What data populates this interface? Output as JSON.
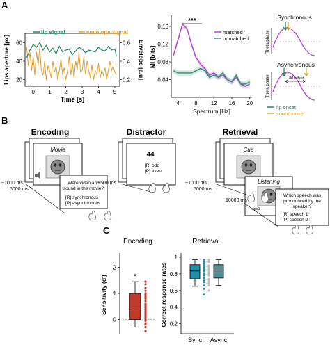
{
  "panels": {
    "a": "A",
    "b": "B",
    "c": "C"
  },
  "panel_a": {
    "left_chart": {
      "type": "line",
      "legend": [
        "lip signal",
        "envelope signal"
      ],
      "colors": {
        "lip": "#1f8a5a",
        "envelope": "#e0a030"
      },
      "xlabel": "Time [s]",
      "ylabel_left": "Lips aperture [px]",
      "ylabel_right": "Envelope [a.u]",
      "xticks": [
        "0",
        "1",
        "2",
        "3",
        "4",
        "5"
      ],
      "yticks_left": [
        "20",
        "40",
        "60"
      ],
      "yticks_right": [
        "0.2",
        "0.4",
        "0.6"
      ],
      "xlim": [
        -0.5,
        5.3
      ],
      "ylim_left": [
        13,
        70
      ],
      "ylim_right": [
        0.13,
        0.7
      ],
      "lip_t": [
        -0.4,
        -0.2,
        0,
        0.2,
        0.4,
        0.6,
        0.8,
        1,
        1.2,
        1.4,
        1.6,
        1.8,
        2,
        2.2,
        2.4,
        2.6,
        2.8,
        3,
        3.2,
        3.4,
        3.6,
        3.8,
        4,
        4.2,
        4.4,
        4.6,
        4.8,
        5,
        5.1
      ],
      "lip_y": [
        44,
        52,
        58,
        55,
        60,
        52,
        57,
        50,
        54,
        48,
        56,
        50,
        52,
        53,
        47,
        51,
        55,
        53,
        49,
        52,
        51,
        50,
        55,
        52,
        51,
        56,
        52,
        53,
        45
      ],
      "env_t": [
        -0.4,
        -0.3,
        -0.2,
        -0.1,
        0,
        0.1,
        0.2,
        0.3,
        0.4,
        0.5,
        0.6,
        0.7,
        0.8,
        0.9,
        1,
        1.1,
        1.2,
        1.3,
        1.4,
        1.5,
        1.6,
        1.7,
        1.8,
        1.9,
        2,
        2.1,
        2.2,
        2.3,
        2.4,
        2.5,
        2.6,
        2.7,
        2.8,
        2.9,
        3,
        3.1,
        3.2,
        3.3,
        3.4,
        3.5,
        3.6,
        3.7,
        3.8,
        3.9,
        4,
        4.1,
        4.2,
        4.3,
        4.4,
        4.5,
        4.6,
        4.7,
        4.8,
        4.9,
        5,
        5.1
      ],
      "env_y": [
        0.55,
        0.35,
        0.5,
        0.3,
        0.45,
        0.25,
        0.5,
        0.35,
        0.55,
        0.3,
        0.25,
        0.4,
        0.2,
        0.35,
        0.3,
        0.22,
        0.4,
        0.28,
        0.35,
        0.2,
        0.3,
        0.42,
        0.25,
        0.33,
        0.2,
        0.3,
        0.45,
        0.25,
        0.38,
        0.22,
        0.4,
        0.3,
        0.5,
        0.28,
        0.3,
        0.45,
        0.26,
        0.4,
        0.3,
        0.22,
        0.36,
        0.2,
        0.3,
        0.25,
        0.38,
        0.22,
        0.3,
        0.25,
        0.33,
        0.2,
        0.3,
        0.4,
        0.3,
        0.35,
        0.28,
        0.25
      ]
    },
    "mid_chart": {
      "type": "line",
      "ylabel": "MI [bits]",
      "xlabel": "Spectrum [Hz]",
      "xticks": [
        "4",
        "8",
        "12",
        "16",
        "20"
      ],
      "yticks": [
        "0.04",
        "0.08",
        "0.12",
        "0.16"
      ],
      "xlim": [
        2.5,
        20.5
      ],
      "ylim": [
        0,
        0.185
      ],
      "significance": "***",
      "legend": [
        "matched",
        "unmatched"
      ],
      "series": [
        {
          "name": "matched",
          "color": "#b040d0",
          "x": [
            3,
            4,
            5,
            6,
            7,
            8,
            9,
            10,
            11,
            12,
            13,
            14,
            15,
            16,
            17,
            18,
            19,
            20
          ],
          "y": [
            0.095,
            0.13,
            0.165,
            0.155,
            0.12,
            0.09,
            0.075,
            0.065,
            0.05,
            0.055,
            0.045,
            0.05,
            0.04,
            0.035,
            0.045,
            0.03,
            0.025,
            0.03
          ]
        },
        {
          "name": "unmatched",
          "color": "#2f8a6a",
          "x": [
            3,
            4,
            5,
            6,
            7,
            8,
            9,
            10,
            11,
            12,
            13,
            14,
            15,
            16,
            17,
            18,
            19,
            20
          ],
          "y": [
            0.06,
            0.055,
            0.055,
            0.055,
            0.055,
            0.06,
            0.065,
            0.06,
            0.045,
            0.05,
            0.045,
            0.055,
            0.04,
            0.035,
            0.05,
            0.03,
            0.03,
            0.035
          ]
        }
      ]
    },
    "theta": {
      "synchronous_title": "Synchronous",
      "asynchronous_title": "Asynchronous",
      "axis_label": "Theta phase",
      "offset_label": "180 offset",
      "legend_lip": "lip onset",
      "legend_sound": "sound onset",
      "lip_color": "#1f8a5a",
      "sound_color": "#e0a030"
    }
  },
  "panel_b": {
    "encoding": {
      "title": "Encoding",
      "card_label": "Movie",
      "question": [
        "Were video and",
        "sound in the movie?"
      ],
      "options": [
        "[R] synchronous",
        "[P] asynchronous"
      ],
      "timing": [
        "~1000 ms",
        "5000 ms"
      ]
    },
    "distractor": {
      "title": "Distractor",
      "number": "44",
      "options": [
        "[R] odd",
        "[P] even"
      ],
      "timing": [
        "~500 ms"
      ]
    },
    "retrieval": {
      "title": "Retrieval",
      "cue_label": "Cue",
      "listening_label": "Listening",
      "speakers": [
        "spc1",
        "spc2"
      ],
      "question": [
        "Which speech was",
        "pronounced by the",
        "speaker?"
      ],
      "options": [
        "[R] speech 1",
        "[P] speech 2"
      ],
      "timing": [
        "~1000 ms",
        "5000 ms",
        "10000 ms"
      ]
    }
  },
  "panel_c": {
    "encoding_chart": {
      "type": "box",
      "title": "Encoding",
      "ylabel": "Sensitivity (d')",
      "yticks": [
        "0",
        "1",
        "2"
      ],
      "ylim": [
        -0.55,
        2.55
      ],
      "significance": "*",
      "box_color": "#c0392b",
      "box": {
        "whisker_low": -0.3,
        "q1": 0.0,
        "median": 0.48,
        "q3": 1.0,
        "whisker_high": 1.45
      },
      "points": [
        1.45,
        1.35,
        1.2,
        1.1,
        1.0,
        0.95,
        0.9,
        0.85,
        0.8,
        0.7,
        0.6,
        0.55,
        0.5,
        0.45,
        0.4,
        0.35,
        0.3,
        0.25,
        0.2,
        0.15,
        0.1,
        0.05,
        0.0,
        -0.05,
        -0.15,
        -0.2,
        -0.3,
        -0.45
      ]
    },
    "retrieval_chart": {
      "type": "box",
      "title": "Retrieval",
      "ylabel": "Correct response rates",
      "yticks": [
        "0.2",
        "0.4",
        "0.6",
        "0.8",
        "1"
      ],
      "ylim": [
        0.08,
        1.05
      ],
      "categories": [
        "Sync",
        "Async"
      ],
      "colors": {
        "sync": "#1f8fa8",
        "async": "#4f8f9a"
      },
      "boxes": [
        {
          "name": "Sync",
          "whisker_low": 0.65,
          "q1": 0.74,
          "median": 0.835,
          "q3": 0.91,
          "whisker_high": 0.97
        },
        {
          "name": "Async",
          "whisker_low": 0.66,
          "q1": 0.75,
          "median": 0.845,
          "q3": 0.91,
          "whisker_high": 0.97
        }
      ],
      "sync_points": [
        0.97,
        0.95,
        0.93,
        0.92,
        0.9,
        0.88,
        0.86,
        0.85,
        0.83,
        0.8,
        0.78,
        0.75,
        0.72,
        0.7,
        0.66,
        0.62,
        0.55
      ],
      "async_points": [
        0.97,
        0.94,
        0.95,
        0.9,
        0.88,
        0.9,
        0.84,
        0.82,
        0.86,
        0.78,
        0.8,
        0.72,
        0.74,
        0.68,
        0.7,
        0.66,
        0.6
      ]
    }
  }
}
